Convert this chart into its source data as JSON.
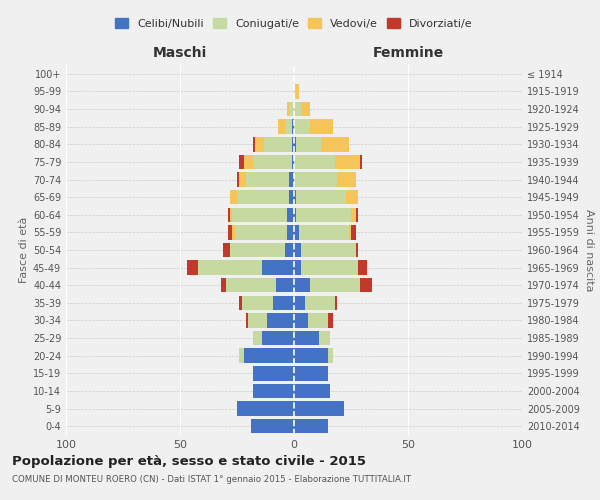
{
  "age_groups": [
    "0-4",
    "5-9",
    "10-14",
    "15-19",
    "20-24",
    "25-29",
    "30-34",
    "35-39",
    "40-44",
    "45-49",
    "50-54",
    "55-59",
    "60-64",
    "65-69",
    "70-74",
    "75-79",
    "80-84",
    "85-89",
    "90-94",
    "95-99",
    "100+"
  ],
  "birth_years": [
    "2010-2014",
    "2005-2009",
    "2000-2004",
    "1995-1999",
    "1990-1994",
    "1985-1989",
    "1980-1984",
    "1975-1979",
    "1970-1974",
    "1965-1969",
    "1960-1964",
    "1955-1959",
    "1950-1954",
    "1945-1949",
    "1940-1944",
    "1935-1939",
    "1930-1934",
    "1925-1929",
    "1920-1924",
    "1915-1919",
    "≤ 1914"
  ],
  "male": {
    "celibi": [
      19,
      25,
      18,
      18,
      22,
      14,
      12,
      9,
      8,
      14,
      4,
      3,
      3,
      2,
      2,
      1,
      1,
      1,
      0,
      0,
      0
    ],
    "coniugati": [
      0,
      0,
      0,
      0,
      2,
      4,
      8,
      14,
      22,
      28,
      24,
      23,
      24,
      23,
      19,
      17,
      12,
      3,
      2,
      0,
      0
    ],
    "vedovi": [
      0,
      0,
      0,
      0,
      0,
      0,
      0,
      0,
      0,
      0,
      0,
      1,
      1,
      3,
      3,
      4,
      4,
      3,
      1,
      0,
      0
    ],
    "divorziati": [
      0,
      0,
      0,
      0,
      0,
      0,
      1,
      1,
      2,
      5,
      3,
      2,
      1,
      0,
      1,
      2,
      1,
      0,
      0,
      0,
      0
    ]
  },
  "female": {
    "nubili": [
      15,
      22,
      16,
      15,
      15,
      11,
      6,
      5,
      7,
      3,
      3,
      2,
      1,
      1,
      0,
      0,
      1,
      0,
      0,
      0,
      0
    ],
    "coniugate": [
      0,
      0,
      0,
      0,
      2,
      5,
      9,
      13,
      22,
      25,
      24,
      22,
      24,
      22,
      19,
      18,
      11,
      7,
      3,
      1,
      0
    ],
    "vedove": [
      0,
      0,
      0,
      0,
      0,
      0,
      0,
      0,
      0,
      0,
      0,
      1,
      2,
      5,
      8,
      11,
      12,
      10,
      4,
      1,
      0
    ],
    "divorziate": [
      0,
      0,
      0,
      0,
      0,
      0,
      2,
      1,
      5,
      4,
      1,
      2,
      1,
      0,
      0,
      1,
      0,
      0,
      0,
      0,
      0
    ]
  },
  "colors": {
    "celibi": "#4472c4",
    "coniugati": "#c5d9a0",
    "vedovi": "#f5c55a",
    "divorziati": "#c0392b"
  },
  "legend_labels": [
    "Celibi/Nubili",
    "Coniugati/e",
    "Vedovi/e",
    "Divorziati/e"
  ],
  "title": "Popolazione per età, sesso e stato civile - 2015",
  "subtitle": "COMUNE DI MONTEU ROERO (CN) - Dati ISTAT 1° gennaio 2015 - Elaborazione TUTTITALIA.IT",
  "xlabel_left": "Maschi",
  "xlabel_right": "Femmine",
  "ylabel_left": "Fasce di età",
  "ylabel_right": "Anni di nascita",
  "xlim": 100,
  "background_color": "#f0f0f0"
}
